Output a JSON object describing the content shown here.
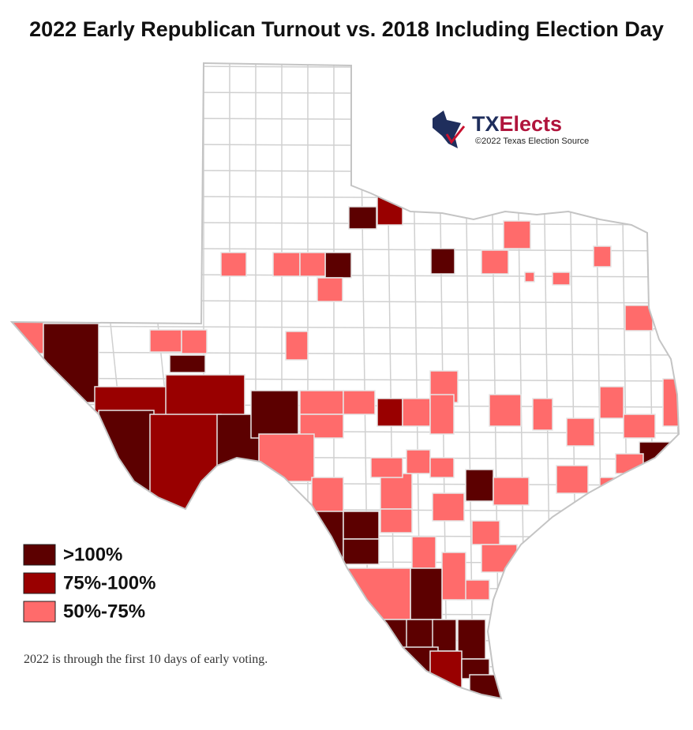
{
  "header": {
    "title": "2022 Early Republican Turnout vs. 2018 Including Election Day"
  },
  "logo": {
    "tx": "TX",
    "elects": "Elects",
    "copyright": "©2022 Texas Election Source"
  },
  "legend": {
    "items": [
      {
        "label": ">100%",
        "color": "#5c0000"
      },
      {
        "label": "75%-100%",
        "color": "#990000"
      },
      {
        "label": "50%-75%",
        "color": "#ff6b6b"
      }
    ]
  },
  "note": "2022 is through the first 10 days of early voting."
}
